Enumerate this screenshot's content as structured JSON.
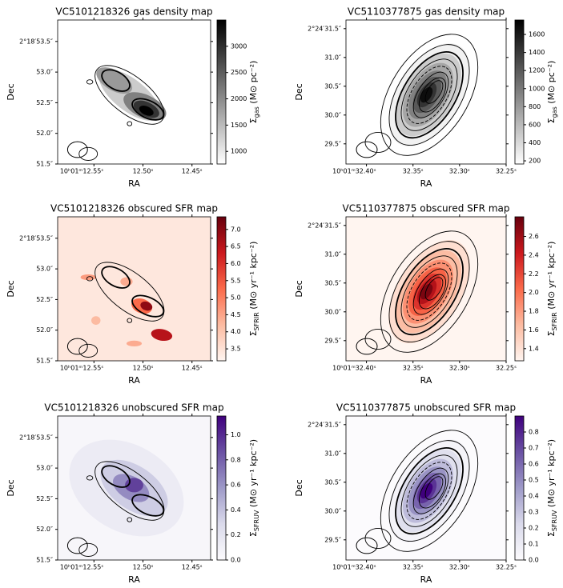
{
  "chart_data": [
    {
      "type": "image",
      "title": "VC5101218326 gas density map",
      "xlabel": "RA",
      "ylabel": "Dec",
      "xlim": [
        12.587,
        12.431
      ],
      "ylim": [
        51.5,
        53.85
      ],
      "xticks": [
        {
          "value": 12.55,
          "label": "10ʰ01ᵐ12.55ˢ"
        },
        {
          "value": 12.5,
          "label": "12.50ˢ"
        },
        {
          "value": 12.45,
          "label": "12.45ˢ"
        }
      ],
      "yticks": [
        {
          "value": 51.5,
          "label": "51.5″"
        },
        {
          "value": 52.0,
          "label": "52.0″"
        },
        {
          "value": 52.5,
          "label": "52.5″"
        },
        {
          "value": 53.0,
          "label": "53.0″"
        },
        {
          "value": 53.5,
          "label": "2°18′53.5″"
        }
      ],
      "colorbar": {
        "symbol": "Σ",
        "sub": "gas",
        "unit": " (M⊙ pc⁻²)",
        "lim": [
          760,
          3500
        ],
        "ticks": [
          1000,
          1500,
          2000,
          2500,
          3000
        ],
        "colors": [
          "#ffffff",
          "#000000"
        ]
      }
    },
    {
      "type": "image",
      "title": "VC5110377875 gas density map",
      "xlabel": "RA",
      "ylabel": "Dec",
      "xlim": [
        32.422,
        32.25
      ],
      "ylim": [
        29.15,
        31.65
      ],
      "xticks": [
        {
          "value": 32.4,
          "label": "10ʰ01ᵐ32.40ˢ"
        },
        {
          "value": 32.35,
          "label": "32.35ˢ"
        },
        {
          "value": 32.3,
          "label": "32.30ˢ"
        },
        {
          "value": 32.25,
          "label": "32.25ˢ"
        }
      ],
      "yticks": [
        {
          "value": 29.5,
          "label": "29.5″"
        },
        {
          "value": 30.0,
          "label": "30.0″"
        },
        {
          "value": 30.5,
          "label": "30.5″"
        },
        {
          "value": 31.0,
          "label": "31.0″"
        },
        {
          "value": 31.5,
          "label": "2°24′31.5″"
        }
      ],
      "colorbar": {
        "symbol": "Σ",
        "sub": "gas",
        "unit": " (M⊙ pc⁻²)",
        "lim": [
          165,
          1760
        ],
        "ticks": [
          200,
          400,
          600,
          800,
          1000,
          1200,
          1400,
          1600
        ],
        "colors": [
          "#ffffff",
          "#000000"
        ]
      }
    },
    {
      "type": "image",
      "title": "VC5101218326 obscured SFR map",
      "xlabel": "RA",
      "ylabel": "Dec",
      "xlim": [
        12.587,
        12.431
      ],
      "ylim": [
        51.5,
        53.85
      ],
      "xticks": [
        {
          "value": 12.55,
          "label": "10ʰ01ᵐ12.55ˢ"
        },
        {
          "value": 12.5,
          "label": "12.50ˢ"
        },
        {
          "value": 12.45,
          "label": "12.45ˢ"
        }
      ],
      "yticks": [
        {
          "value": 51.5,
          "label": "51.5″"
        },
        {
          "value": 52.0,
          "label": "52.0″"
        },
        {
          "value": 52.5,
          "label": "52.5″"
        },
        {
          "value": 53.0,
          "label": "53.0″"
        },
        {
          "value": 53.5,
          "label": "2°18′53.5″"
        }
      ],
      "colorbar": {
        "symbol": "Σ",
        "sub": "SFRIR",
        "unit": " (M⊙ yr⁻¹ kpc⁻²)",
        "lim": [
          3.15,
          7.37
        ],
        "ticks": [
          3.5,
          {
            "value": 4,
            "label": "4.0"
          },
          4.5,
          {
            "value": 5,
            "label": "5.0"
          },
          5.5,
          {
            "value": 6,
            "label": "6.0"
          },
          6.5,
          {
            "value": 7,
            "label": "7.0"
          }
        ],
        "colors": [
          "#fff5f0",
          "#fcbba1",
          "#fb6a4a",
          "#cb181d",
          "#67000d"
        ]
      }
    },
    {
      "type": "image",
      "title": "VC5110377875 obscured SFR map",
      "xlabel": "RA",
      "ylabel": "Dec",
      "xlim": [
        32.422,
        32.25
      ],
      "ylim": [
        29.15,
        31.65
      ],
      "xticks": [
        {
          "value": 32.4,
          "label": "10ʰ01ᵐ32.40ˢ"
        },
        {
          "value": 32.35,
          "label": "32.35ˢ"
        },
        {
          "value": 32.3,
          "label": "32.30ˢ"
        },
        {
          "value": 32.25,
          "label": "32.25ˢ"
        }
      ],
      "yticks": [
        {
          "value": 29.5,
          "label": "29.5″"
        },
        {
          "value": 30.0,
          "label": "30.0″"
        },
        {
          "value": 30.5,
          "label": "30.5″"
        },
        {
          "value": 31.0,
          "label": "31.0″"
        },
        {
          "value": 31.5,
          "label": "2°24′31.5″"
        }
      ],
      "colorbar": {
        "symbol": "Σ",
        "sub": "SFRIR",
        "unit": " (M⊙ yr⁻¹ kpc⁻²)",
        "lim": [
          1.27,
          2.81
        ],
        "ticks": [
          1.4,
          1.6,
          1.8,
          {
            "value": 2,
            "label": "2.0"
          },
          2.2,
          2.4,
          2.6
        ],
        "colors": [
          "#fff5f0",
          "#fcbba1",
          "#fb6a4a",
          "#cb181d",
          "#67000d"
        ]
      }
    },
    {
      "type": "image",
      "title": "VC5101218326 unobscured SFR map",
      "xlabel": "RA",
      "ylabel": "Dec",
      "xlim": [
        12.587,
        12.431
      ],
      "ylim": [
        51.5,
        53.85
      ],
      "xticks": [
        {
          "value": 12.55,
          "label": "10ʰ01ᵐ12.55ˢ"
        },
        {
          "value": 12.5,
          "label": "12.50ˢ"
        },
        {
          "value": 12.45,
          "label": "12.45ˢ"
        }
      ],
      "yticks": [
        {
          "value": 51.5,
          "label": "51.5″"
        },
        {
          "value": 52.0,
          "label": "52.0″"
        },
        {
          "value": 52.5,
          "label": "52.5″"
        },
        {
          "value": 53.0,
          "label": "53.0″"
        },
        {
          "value": 53.5,
          "label": "2°18′53.5″"
        }
      ],
      "colorbar": {
        "symbol": "Σ",
        "sub": "SFRUV",
        "unit": " (M⊙ yr⁻¹ kpc⁻²)",
        "lim": [
          0,
          1.15
        ],
        "ticks": [
          {
            "value": 0,
            "label": "0.0"
          },
          0.2,
          0.4,
          0.6,
          0.8,
          {
            "value": 1,
            "label": "1.0"
          }
        ],
        "colors": [
          "#fcfbfd",
          "#dadaeb",
          "#9e9ac8",
          "#6a51a3",
          "#3f007d"
        ]
      }
    },
    {
      "type": "image",
      "title": "VC5110377875 unobscured SFR map",
      "xlabel": "RA",
      "ylabel": "Dec",
      "xlim": [
        32.422,
        32.25
      ],
      "ylim": [
        29.15,
        31.65
      ],
      "xticks": [
        {
          "value": 32.4,
          "label": "10ʰ01ᵐ32.40ˢ"
        },
        {
          "value": 32.35,
          "label": "32.35ˢ"
        },
        {
          "value": 32.3,
          "label": "32.30ˢ"
        },
        {
          "value": 32.25,
          "label": "32.25ˢ"
        }
      ],
      "yticks": [
        {
          "value": 29.5,
          "label": "29.5″"
        },
        {
          "value": 30.0,
          "label": "30.0″"
        },
        {
          "value": 30.5,
          "label": "30.5″"
        },
        {
          "value": 31.0,
          "label": "31.0″"
        },
        {
          "value": 31.5,
          "label": "2°24′31.5″"
        }
      ],
      "colorbar": {
        "symbol": "Σ",
        "sub": "SFRUV",
        "unit": " (M⊙ yr⁻¹ kpc⁻²)",
        "lim": [
          0,
          0.9
        ],
        "ticks": [
          {
            "value": 0,
            "label": "0.0"
          },
          0.1,
          0.2,
          0.3,
          0.4,
          0.5,
          0.6,
          0.7,
          0.8
        ],
        "colors": [
          "#fcfbfd",
          "#dadaeb",
          "#9e9ac8",
          "#6a51a3",
          "#3f007d"
        ]
      }
    }
  ]
}
